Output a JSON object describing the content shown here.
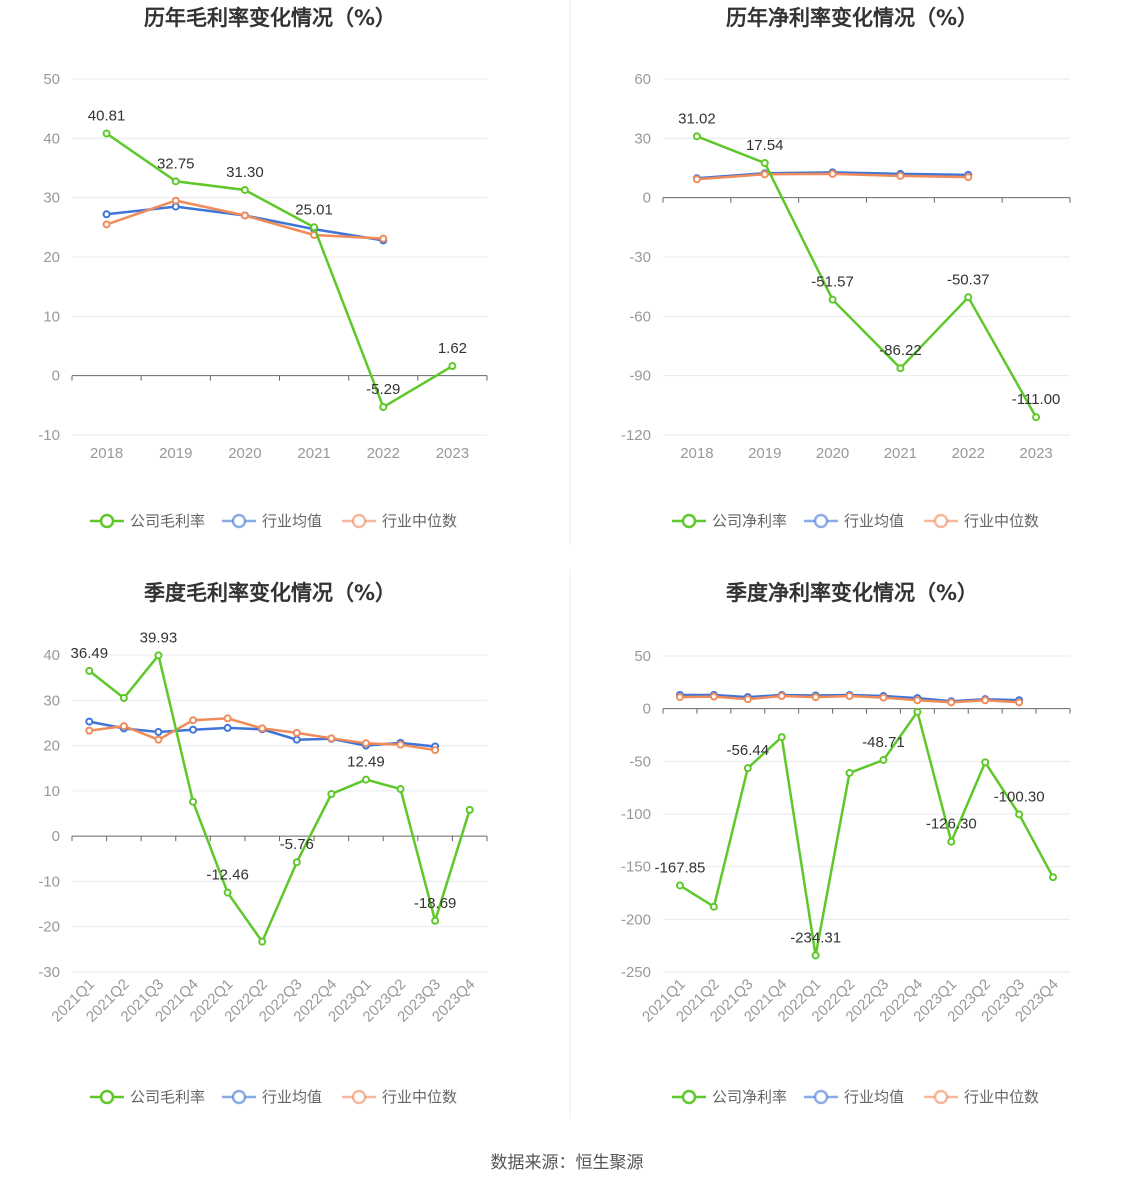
{
  "colors": {
    "company": "#5ec82a",
    "avg": "#3f74d8",
    "median": "#f08b5a",
    "grid": "#e8eaf0",
    "axis": "#666666",
    "divider": "#eeeeee"
  },
  "source": "数据来源：恒生聚源",
  "chart_data": [
    {
      "type": "line",
      "title": "历年毛利率变化情况（%）",
      "x": [
        "2018",
        "2019",
        "2020",
        "2021",
        "2022",
        "2023"
      ],
      "ylim": [
        -10,
        50
      ],
      "yticks": [
        50,
        40,
        30,
        20,
        10,
        0,
        -10
      ],
      "grid": true,
      "legend": "bottom",
      "series": [
        {
          "name": "公司毛利率",
          "values": [
            40.81,
            32.75,
            31.3,
            25.01,
            -5.29,
            1.62
          ],
          "labels": [
            "40.81",
            "32.75",
            "31.30",
            "25.01",
            "-5.29",
            "1.62"
          ]
        },
        {
          "name": "行业均值",
          "values": [
            27.2,
            28.5,
            27.0,
            24.7,
            22.8,
            null
          ]
        },
        {
          "name": "行业中位数",
          "values": [
            25.5,
            29.5,
            27.0,
            23.7,
            23.1,
            null
          ]
        }
      ]
    },
    {
      "type": "line",
      "title": "历年净利率变化情况（%）",
      "x": [
        "2018",
        "2019",
        "2020",
        "2021",
        "2022",
        "2023"
      ],
      "ylim": [
        -120,
        60
      ],
      "yticks": [
        60,
        30,
        0,
        -30,
        -60,
        -90,
        -120
      ],
      "grid": true,
      "legend": "bottom",
      "series": [
        {
          "name": "公司净利率",
          "values": [
            31.02,
            17.54,
            -51.57,
            -86.22,
            -50.37,
            -111.0
          ],
          "labels": [
            "31.02",
            "17.54",
            "-51.57",
            "-86.22",
            "-50.37",
            "-111.00"
          ]
        },
        {
          "name": "行业均值",
          "values": [
            9.8,
            12.3,
            12.8,
            12.0,
            11.5,
            null
          ]
        },
        {
          "name": "行业中位数",
          "values": [
            9.3,
            11.8,
            12.0,
            11.0,
            10.4,
            null
          ]
        }
      ]
    },
    {
      "type": "line",
      "title": "季度毛利率变化情况（%）",
      "x": [
        "2021Q1",
        "2021Q2",
        "2021Q3",
        "2021Q4",
        "2022Q1",
        "2022Q2",
        "2022Q3",
        "2022Q4",
        "2023Q1",
        "2023Q2",
        "2023Q3",
        "2023Q4"
      ],
      "ylim": [
        -30,
        40
      ],
      "yticks": [
        40,
        30,
        20,
        10,
        0,
        -10,
        -20,
        -30
      ],
      "grid": true,
      "legend": "bottom",
      "series": [
        {
          "name": "公司毛利率",
          "values": [
            36.49,
            30.5,
            39.93,
            7.6,
            -12.46,
            -23.3,
            -5.76,
            9.3,
            12.49,
            10.4,
            -18.69,
            5.8
          ],
          "labels": [
            "36.49",
            "",
            "39.93",
            "",
            "-12.46",
            "",
            "-5.76",
            "",
            "12.49",
            "",
            "-18.69",
            ""
          ]
        },
        {
          "name": "行业均值",
          "values": [
            25.3,
            23.8,
            23.0,
            23.5,
            23.9,
            23.6,
            21.3,
            21.5,
            20.0,
            20.6,
            19.8,
            null
          ]
        },
        {
          "name": "行业中位数",
          "values": [
            23.3,
            24.3,
            21.3,
            25.6,
            26.0,
            23.8,
            22.8,
            21.6,
            20.5,
            20.2,
            19.0,
            null
          ]
        }
      ]
    },
    {
      "type": "line",
      "title": "季度净利率变化情况（%）",
      "x": [
        "2021Q1",
        "2021Q2",
        "2021Q3",
        "2021Q4",
        "2022Q1",
        "2022Q2",
        "2022Q3",
        "2022Q4",
        "2023Q1",
        "2023Q2",
        "2023Q3",
        "2023Q4"
      ],
      "ylim": [
        -250,
        50
      ],
      "yticks": [
        50,
        0,
        -50,
        -100,
        -150,
        -200,
        -250
      ],
      "grid": true,
      "legend": "bottom",
      "series": [
        {
          "name": "公司净利率",
          "values": [
            -167.85,
            -188,
            -56.44,
            -27,
            -234.31,
            -61,
            -48.71,
            -3,
            -126.3,
            -51,
            -100.3,
            -160
          ],
          "labels": [
            "-167.85",
            "",
            "-56.44",
            "",
            "-234.31",
            "",
            "-48.71",
            "",
            "-126.30",
            "",
            "-100.30",
            ""
          ]
        },
        {
          "name": "行业均值",
          "values": [
            13,
            13,
            11,
            13,
            12.5,
            13,
            12,
            10,
            7,
            9,
            8,
            null
          ]
        },
        {
          "name": "行业中位数",
          "values": [
            11,
            11.5,
            9,
            12,
            11,
            12,
            10.5,
            8,
            6,
            8,
            6,
            null
          ]
        }
      ]
    }
  ]
}
